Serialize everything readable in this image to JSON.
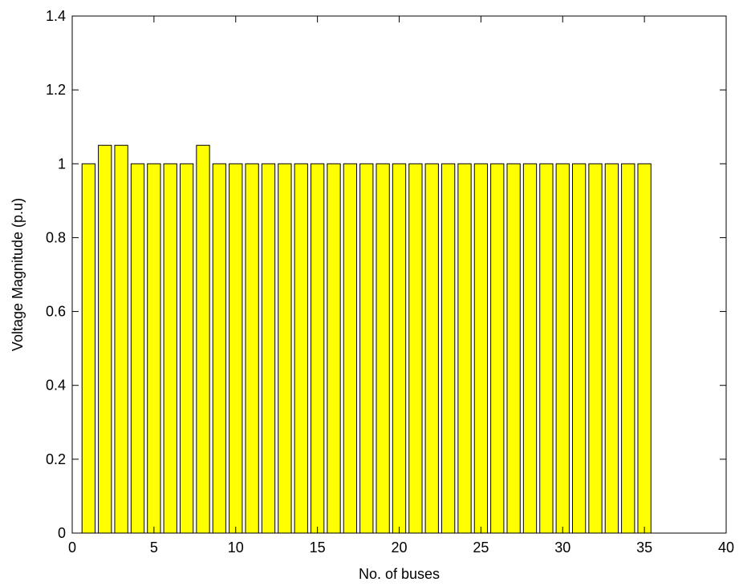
{
  "chart_data": {
    "type": "bar",
    "title": "",
    "xlabel": "No. of buses",
    "ylabel": "Voltage Magnitude (p.u)",
    "xlim": [
      0,
      40
    ],
    "ylim": [
      0,
      1.4
    ],
    "xticks": [
      0,
      5,
      10,
      15,
      20,
      25,
      30,
      35,
      40
    ],
    "yticks": [
      0,
      0.2,
      0.4,
      0.6,
      0.8,
      1,
      1.2,
      1.4
    ],
    "x": [
      1,
      2,
      3,
      4,
      5,
      6,
      7,
      8,
      9,
      10,
      11,
      12,
      13,
      14,
      15,
      16,
      17,
      18,
      19,
      20,
      21,
      22,
      23,
      24,
      25,
      26,
      27,
      28,
      29,
      30,
      31,
      32,
      33,
      34,
      35
    ],
    "values": [
      1,
      1.05,
      1.05,
      1,
      1,
      1,
      1,
      1.05,
      1,
      1,
      1,
      1,
      1,
      1,
      1,
      1,
      1,
      1,
      1,
      1,
      1,
      1,
      1,
      1,
      1,
      1,
      1,
      1,
      1,
      1,
      1,
      1,
      1,
      1,
      1
    ],
    "bar_color": "#ffff00",
    "edge_color": "#000000",
    "grid": false
  }
}
